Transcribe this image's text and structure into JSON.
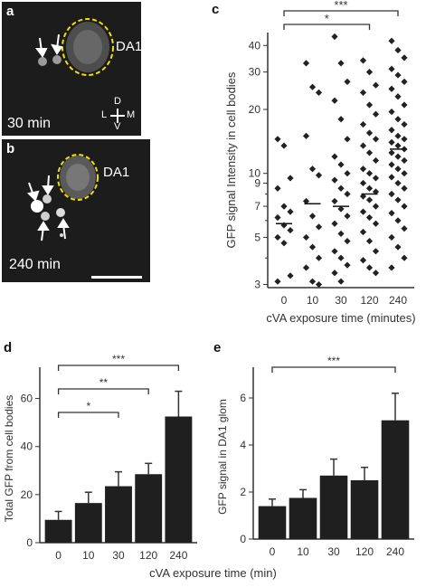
{
  "panels": {
    "a": {
      "label": "a",
      "time_label": "30 min",
      "glom_label": "DA1",
      "compass": {
        "d": "D",
        "l": "L",
        "m": "M",
        "v": "V"
      }
    },
    "b": {
      "label": "b",
      "time_label": "240 min",
      "glom_label": "DA1"
    },
    "c": {
      "label": "c"
    },
    "d": {
      "label": "d"
    },
    "e": {
      "label": "e"
    }
  },
  "chart_data": [
    {
      "id": "c",
      "type": "scatter",
      "yscale": "log",
      "categories": [
        "0",
        "10",
        "30",
        "120",
        "240"
      ],
      "xlabel": "cVA exposure time (minutes)",
      "ylabel": "GFP signal Intensity in cell bodies",
      "yticks": [
        3,
        5,
        7,
        9,
        10,
        20,
        30,
        40
      ],
      "ylim": [
        2.9,
        46
      ],
      "medians": [
        5.8,
        7.2,
        7.0,
        8.0,
        13.0
      ],
      "points": [
        [
          14.5,
          13.5,
          9.5,
          8.5,
          7.0,
          6.6,
          6.2,
          5.7,
          5.4,
          5.0,
          4.7,
          3.3,
          3.1
        ],
        [
          33,
          25.5,
          24,
          15,
          10.5,
          9.8,
          7.4,
          6.3,
          5.6,
          5.0,
          4.5,
          4.0,
          3.6,
          3.1,
          3.0
        ],
        [
          44,
          33,
          27,
          22,
          18,
          14.5,
          12,
          11,
          10,
          9.3,
          8.5,
          8.0,
          7.4,
          6.8,
          6.3,
          5.8,
          5.2,
          4.8,
          4.3,
          4.0,
          3.7,
          3.4,
          3.1
        ],
        [
          34,
          30,
          26,
          24,
          21,
          19,
          17,
          15.5,
          14.5,
          13.5,
          12.5,
          11.5,
          10.5,
          10,
          9.5,
          9.0,
          8.5,
          8.2,
          7.8,
          7.5,
          7.0,
          6.6,
          6.2,
          5.8,
          5.3,
          4.8,
          4.3,
          3.9,
          3.6,
          3.4
        ],
        [
          42,
          38,
          35,
          31,
          29,
          27,
          25,
          23,
          21,
          19.5,
          18,
          17,
          16,
          15,
          14.5,
          14,
          13.5,
          13,
          12.5,
          12,
          11.5,
          11,
          10.5,
          10,
          9.6,
          9.0,
          8.5,
          8.0,
          7.5,
          7.0,
          6.5,
          6.0,
          5.5,
          5.0,
          4.5,
          4.0,
          3.6
        ]
      ],
      "significance": [
        {
          "from": "0",
          "to": "240",
          "label": "***"
        },
        {
          "from": "0",
          "to": "120",
          "label": "*"
        }
      ]
    },
    {
      "id": "d",
      "type": "bar",
      "categories": [
        "0",
        "10",
        "30",
        "120",
        "240"
      ],
      "values": [
        9.5,
        16.5,
        23.5,
        28.5,
        52.5
      ],
      "errors": [
        3.5,
        4.5,
        6,
        4.5,
        10.5
      ],
      "xlabel": "",
      "ylabel": "Total GFP from cell bodies",
      "ylim": [
        0,
        70
      ],
      "yticks": [
        0,
        20,
        40,
        60
      ],
      "significance": [
        {
          "from": "0",
          "to": "240",
          "label": "***"
        },
        {
          "from": "0",
          "to": "120",
          "label": "**"
        },
        {
          "from": "0",
          "to": "30",
          "label": "*"
        }
      ]
    },
    {
      "id": "e",
      "type": "bar",
      "categories": [
        "0",
        "10",
        "30",
        "120",
        "240"
      ],
      "values": [
        1.4,
        1.75,
        2.7,
        2.5,
        5.05
      ],
      "errors": [
        0.3,
        0.35,
        0.7,
        0.55,
        1.15
      ],
      "xlabel": "",
      "ylabel": "GFP signal in DA1 glom",
      "ylim": [
        0,
        7
      ],
      "yticks": [
        0,
        2,
        4,
        6
      ],
      "significance": [
        {
          "from": "0",
          "to": "240",
          "label": "***"
        }
      ]
    }
  ],
  "shared_xlabel": "cVA exposure time (min)",
  "colors": {
    "bar": "#1f1f1f",
    "point": "#222222",
    "highlight": "#f0e000"
  }
}
